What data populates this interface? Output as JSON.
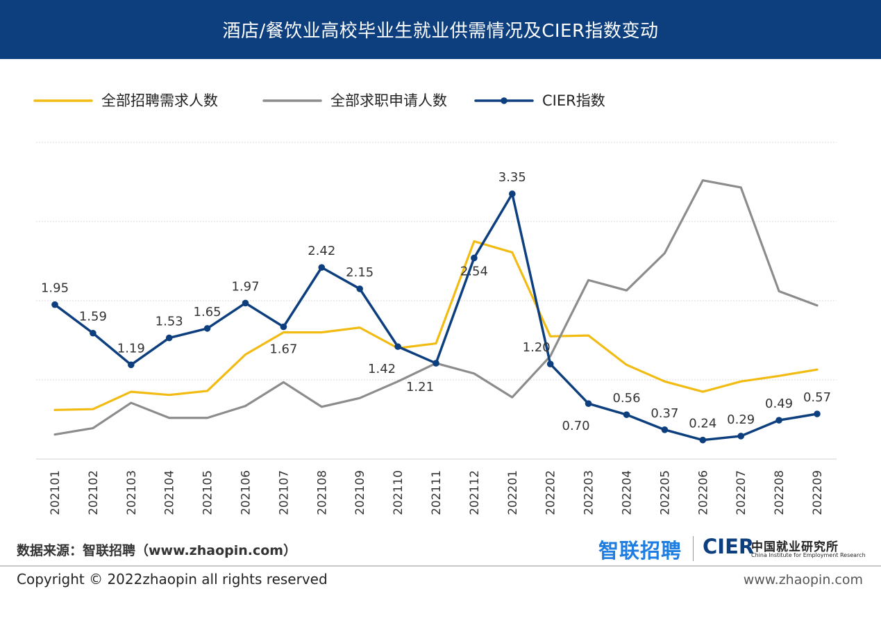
{
  "header": {
    "title": "酒店/餐饮业高校毕业生就业供需情况及CIER指数变动"
  },
  "chart_data": {
    "type": "line",
    "title": "酒店/餐饮业高校毕业生就业供需情况及CIER指数变动",
    "categories": [
      "202101",
      "202102",
      "202103",
      "202104",
      "202105",
      "202106",
      "202107",
      "202108",
      "202109",
      "202110",
      "202111",
      "202112",
      "202201",
      "202202",
      "202203",
      "202204",
      "202205",
      "202206",
      "202207",
      "202208",
      "202209"
    ],
    "series": [
      {
        "name": "全部招聘需求人数",
        "color": "#f2bb12",
        "labeled": false,
        "values": [
          0.62,
          0.63,
          0.85,
          0.81,
          0.86,
          1.32,
          1.6,
          1.6,
          1.66,
          1.4,
          1.46,
          2.75,
          2.61,
          1.55,
          1.56,
          1.19,
          0.98,
          0.85,
          0.98,
          1.05,
          1.13
        ]
      },
      {
        "name": "全部求职申请人数",
        "color": "#8c8c8c",
        "labeled": false,
        "values": [
          0.31,
          0.39,
          0.71,
          0.52,
          0.52,
          0.67,
          0.97,
          0.66,
          0.77,
          0.98,
          1.21,
          1.08,
          0.78,
          1.3,
          2.26,
          2.13,
          2.6,
          3.52,
          3.43,
          2.12,
          1.94
        ]
      },
      {
        "name": "CIER指数",
        "color": "#0d3f7f",
        "labeled": true,
        "values": [
          1.95,
          1.59,
          1.19,
          1.53,
          1.65,
          1.97,
          1.67,
          2.42,
          2.15,
          1.42,
          1.21,
          2.54,
          3.35,
          1.2,
          0.7,
          0.56,
          0.37,
          0.24,
          0.29,
          0.49,
          0.57
        ]
      }
    ],
    "ylim": [
      0,
      4
    ],
    "grid": true,
    "legend": "top-left",
    "xlabel": "",
    "ylabel": ""
  },
  "footer": {
    "source": "数据来源：智联招聘（www.zhaopin.com）",
    "copyright": "Copyright ©  2022zhaopin all rights reserved",
    "site": "www.zhaopin.com"
  },
  "logos": {
    "zhaopin": "智联招聘",
    "cier": "CIER",
    "cier_cn": "中国就业研究所",
    "cier_en": "China Institute for Employment Research"
  }
}
